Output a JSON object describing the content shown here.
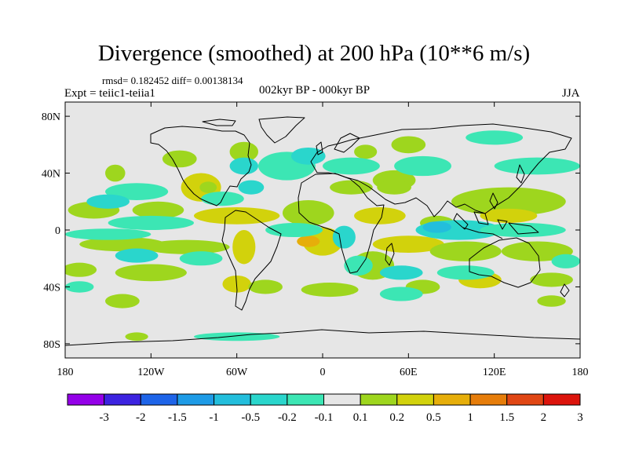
{
  "title": "Divergence (smoothed) at 200 hPa (10**6 m/s)",
  "stats_line": "rmsd= 0.182452 diff= 0.00138134",
  "experiment": "Expt = teiic1-teiia1",
  "period": "002kyr BP - 000kyr BP",
  "season": "JJA",
  "lat_ticks": [
    "80N",
    "40N",
    "0",
    "40S",
    "80S"
  ],
  "lon_ticks": [
    "180",
    "120W",
    "60W",
    "0",
    "60E",
    "120E",
    "180"
  ],
  "colorbar": {
    "labels": [
      "-3",
      "-2",
      "-1.5",
      "-1",
      "-0.5",
      "-0.2",
      "-0.1",
      "0.1",
      "0.2",
      "0.5",
      "1",
      "1.5",
      "2",
      "3"
    ],
    "colors": [
      "#9400e8",
      "#3c23e0",
      "#1e64e8",
      "#1e9be6",
      "#23bedc",
      "#2ad6cc",
      "#3ce6b4",
      "#e6e6e6",
      "#9ed61e",
      "#d2d20c",
      "#e6ae0a",
      "#e67d0a",
      "#e04614",
      "#dc140c"
    ]
  },
  "map": {
    "ocean_fill": "#e6e6e6",
    "anomaly_patches": [
      {
        "cls": 2,
        "lon": -85,
        "lat": 30,
        "rx": 14,
        "ry": 10
      },
      {
        "cls": 1,
        "lon": -80,
        "lat": 30,
        "rx": 6,
        "ry": 4
      },
      {
        "cls": 1,
        "lon": -100,
        "lat": 50,
        "rx": 12,
        "ry": 6
      },
      {
        "cls": 1,
        "lon": -55,
        "lat": 55,
        "rx": 10,
        "ry": 7
      },
      {
        "cls": 1,
        "lon": -145,
        "lat": 40,
        "rx": 7,
        "ry": 6
      },
      {
        "cls": 1,
        "lon": -160,
        "lat": 14,
        "rx": 18,
        "ry": 6
      },
      {
        "cls": 1,
        "lon": -115,
        "lat": 14,
        "rx": 18,
        "ry": 6
      },
      {
        "cls": 2,
        "lon": -60,
        "lat": 10,
        "rx": 30,
        "ry": 6
      },
      {
        "cls": 1,
        "lon": -140,
        "lat": -10,
        "rx": 30,
        "ry": 5
      },
      {
        "cls": 1,
        "lon": -95,
        "lat": -12,
        "rx": 30,
        "ry": 5
      },
      {
        "cls": 2,
        "lon": -55,
        "lat": -12,
        "rx": 8,
        "ry": 12
      },
      {
        "cls": 1,
        "lon": -120,
        "lat": -30,
        "rx": 25,
        "ry": 6
      },
      {
        "cls": 1,
        "lon": -170,
        "lat": -28,
        "rx": 12,
        "ry": 5
      },
      {
        "cls": 2,
        "lon": -60,
        "lat": -38,
        "rx": 10,
        "ry": 6
      },
      {
        "cls": 1,
        "lon": -40,
        "lat": -40,
        "rx": 12,
        "ry": 5
      },
      {
        "cls": 1,
        "lon": -140,
        "lat": -50,
        "rx": 12,
        "ry": 5
      },
      {
        "cls": 1,
        "lon": -130,
        "lat": -75,
        "rx": 8,
        "ry": 3
      },
      {
        "cls": 1,
        "lon": -10,
        "lat": 12,
        "rx": 18,
        "ry": 9
      },
      {
        "cls": 1,
        "lon": 20,
        "lat": 30,
        "rx": 15,
        "ry": 5
      },
      {
        "cls": 2,
        "lon": 40,
        "lat": 10,
        "rx": 18,
        "ry": 6
      },
      {
        "cls": 1,
        "lon": 50,
        "lat": 35,
        "rx": 15,
        "ry": 7
      },
      {
        "cls": 1,
        "lon": 60,
        "lat": 60,
        "rx": 12,
        "ry": 6
      },
      {
        "cls": 1,
        "lon": 30,
        "lat": 55,
        "rx": 8,
        "ry": 5
      },
      {
        "cls": 1,
        "lon": 130,
        "lat": 20,
        "rx": 40,
        "ry": 10
      },
      {
        "cls": 2,
        "lon": 130,
        "lat": 10,
        "rx": 20,
        "ry": 5
      },
      {
        "cls": 1,
        "lon": 80,
        "lat": 5,
        "rx": 12,
        "ry": 5
      },
      {
        "cls": 1,
        "lon": 50,
        "lat": 30,
        "rx": 12,
        "ry": 5
      },
      {
        "cls": 2,
        "lon": 0,
        "lat": -8,
        "rx": 14,
        "ry": 10
      },
      {
        "cls": 3,
        "lon": -10,
        "lat": -8,
        "rx": 8,
        "ry": 4
      },
      {
        "cls": 2,
        "lon": 60,
        "lat": -10,
        "rx": 25,
        "ry": 6
      },
      {
        "cls": 1,
        "lon": 100,
        "lat": -15,
        "rx": 25,
        "ry": 7
      },
      {
        "cls": 1,
        "lon": 150,
        "lat": -15,
        "rx": 25,
        "ry": 7
      },
      {
        "cls": 1,
        "lon": 35,
        "lat": -25,
        "rx": 15,
        "ry": 10
      },
      {
        "cls": 2,
        "lon": 110,
        "lat": -35,
        "rx": 15,
        "ry": 6
      },
      {
        "cls": 1,
        "lon": 160,
        "lat": -35,
        "rx": 15,
        "ry": 5
      },
      {
        "cls": 1,
        "lon": 70,
        "lat": -40,
        "rx": 12,
        "ry": 5
      },
      {
        "cls": 1,
        "lon": 5,
        "lat": -42,
        "rx": 20,
        "ry": 5
      },
      {
        "cls": 1,
        "lon": 160,
        "lat": -50,
        "rx": 10,
        "ry": 4
      },
      {
        "cls": -1,
        "lon": -130,
        "lat": 27,
        "rx": 22,
        "ry": 6
      },
      {
        "cls": -2,
        "lon": -150,
        "lat": 20,
        "rx": 15,
        "ry": 5
      },
      {
        "cls": -1,
        "lon": -70,
        "lat": 22,
        "rx": 15,
        "ry": 5
      },
      {
        "cls": -2,
        "lon": -55,
        "lat": 45,
        "rx": 10,
        "ry": 6
      },
      {
        "cls": -2,
        "lon": -50,
        "lat": 30,
        "rx": 9,
        "ry": 5
      },
      {
        "cls": -1,
        "lon": -25,
        "lat": 45,
        "rx": 20,
        "ry": 10
      },
      {
        "cls": -2,
        "lon": -10,
        "lat": 52,
        "rx": 12,
        "ry": 6
      },
      {
        "cls": -1,
        "lon": -120,
        "lat": 5,
        "rx": 30,
        "ry": 5
      },
      {
        "cls": -1,
        "lon": -150,
        "lat": -3,
        "rx": 30,
        "ry": 4
      },
      {
        "cls": -2,
        "lon": -130,
        "lat": -18,
        "rx": 15,
        "ry": 5
      },
      {
        "cls": -1,
        "lon": -85,
        "lat": -20,
        "rx": 15,
        "ry": 5
      },
      {
        "cls": -1,
        "lon": -170,
        "lat": -40,
        "rx": 10,
        "ry": 4
      },
      {
        "cls": -1,
        "lon": -20,
        "lat": 0,
        "rx": 20,
        "ry": 5
      },
      {
        "cls": -2,
        "lon": 15,
        "lat": -5,
        "rx": 8,
        "ry": 8
      },
      {
        "cls": -1,
        "lon": 25,
        "lat": -25,
        "rx": 10,
        "ry": 7
      },
      {
        "cls": -1,
        "lon": 20,
        "lat": 45,
        "rx": 20,
        "ry": 6
      },
      {
        "cls": -1,
        "lon": 70,
        "lat": 45,
        "rx": 20,
        "ry": 7
      },
      {
        "cls": -2,
        "lon": 95,
        "lat": 0,
        "rx": 30,
        "ry": 7
      },
      {
        "cls": -3,
        "lon": 80,
        "lat": 2,
        "rx": 10,
        "ry": 4
      },
      {
        "cls": -1,
        "lon": 140,
        "lat": 0,
        "rx": 30,
        "ry": 5
      },
      {
        "cls": -1,
        "lon": 150,
        "lat": 45,
        "rx": 30,
        "ry": 6
      },
      {
        "cls": -1,
        "lon": 100,
        "lat": -30,
        "rx": 20,
        "ry": 5
      },
      {
        "cls": -2,
        "lon": 55,
        "lat": -30,
        "rx": 15,
        "ry": 5
      },
      {
        "cls": -1,
        "lon": 55,
        "lat": -45,
        "rx": 15,
        "ry": 5
      },
      {
        "cls": -1,
        "lon": 170,
        "lat": -22,
        "rx": 10,
        "ry": 5
      },
      {
        "cls": -1,
        "lon": -60,
        "lat": -75,
        "rx": 30,
        "ry": 3
      },
      {
        "cls": -1,
        "lon": 120,
        "lat": 65,
        "rx": 20,
        "ry": 5
      }
    ]
  }
}
